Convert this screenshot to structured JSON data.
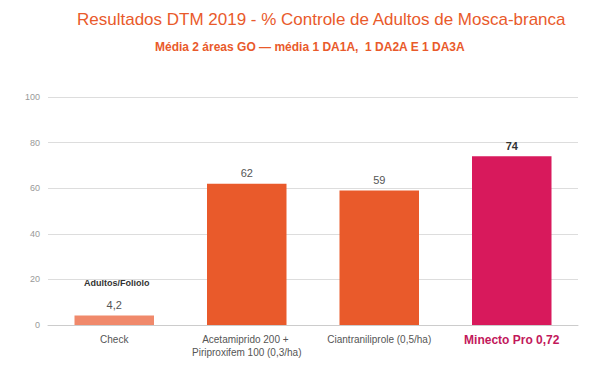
{
  "chart_data": {
    "type": "bar",
    "title": "Resultados DTM 2019 - % Controle de Adultos de Mosca-branca",
    "subtitle": "Média 2 áreas GO — média 1 DA1A,  1 DA2A E 1 DA3A",
    "categories": [
      "Check",
      "Acetamiprido 200 + Piriproxifem 100 (0,3/ha)",
      "Ciantraniliprole (0,5/ha)",
      "Minecto Pro 0,72"
    ],
    "values": [
      4.2,
      62,
      59,
      74
    ],
    "value_labels": [
      "4,2",
      "62",
      "59",
      "74"
    ],
    "colors": [
      "#f0896b",
      "#e95a2b",
      "#e95a2b",
      "#d8195c"
    ],
    "ylim": [
      0,
      100
    ],
    "yticks": [
      0,
      20,
      40,
      60,
      80,
      100
    ],
    "grid": true,
    "data_labels": true,
    "annotations": [
      "Adultos/Folíolo"
    ]
  }
}
